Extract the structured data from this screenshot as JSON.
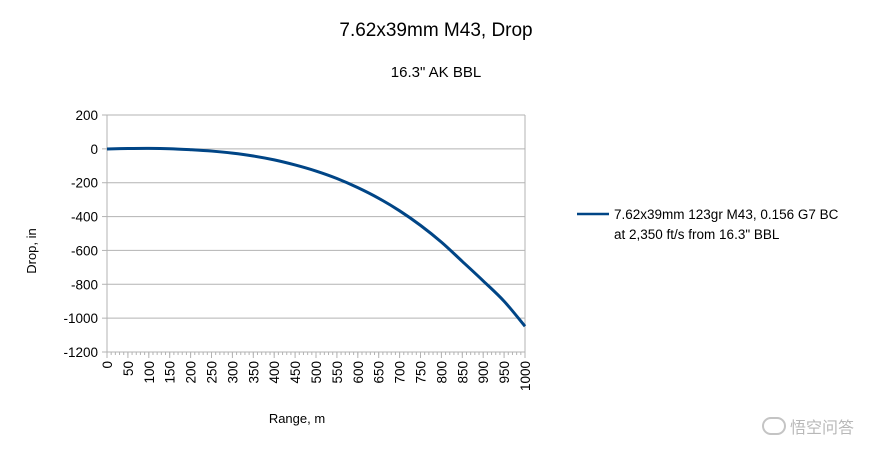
{
  "chart_data": {
    "type": "line",
    "title": "7.62x39mm M43,  Drop",
    "subtitle": "16.3\" AK BBL",
    "xlabel": "Range, m",
    "ylabel": "Drop, in",
    "xlim": [
      0,
      1000
    ],
    "ylim": [
      -1200,
      200
    ],
    "x_ticks": [
      0,
      50,
      100,
      150,
      200,
      250,
      300,
      350,
      400,
      450,
      500,
      550,
      600,
      650,
      700,
      750,
      800,
      850,
      900,
      950,
      1000
    ],
    "y_ticks": [
      200,
      0,
      -200,
      -400,
      -600,
      -800,
      -1000,
      -1200
    ],
    "grid": true,
    "legend_position": "right",
    "series": [
      {
        "name": "7.62x39mm 123gr M43, 0.156 G7 BC at 2,350 ft/s from 16.3\" BBL",
        "color": "#004586",
        "x": [
          0,
          50,
          100,
          150,
          200,
          250,
          300,
          350,
          400,
          450,
          500,
          550,
          600,
          650,
          700,
          750,
          800,
          850,
          900,
          950,
          1000
        ],
        "y": [
          -1,
          2,
          3,
          1,
          -5,
          -13,
          -25,
          -42,
          -65,
          -95,
          -131,
          -175,
          -229,
          -292,
          -366,
          -452,
          -551,
          -665,
          -780,
          -900,
          -1048
        ]
      }
    ]
  },
  "legend": {
    "line1": "7.62x39mm 123gr M43, 0.156 G7 BC",
    "line2": "at 2,350 ft/s from 16.3\" BBL"
  },
  "watermark": {
    "text": "悟空问答"
  }
}
